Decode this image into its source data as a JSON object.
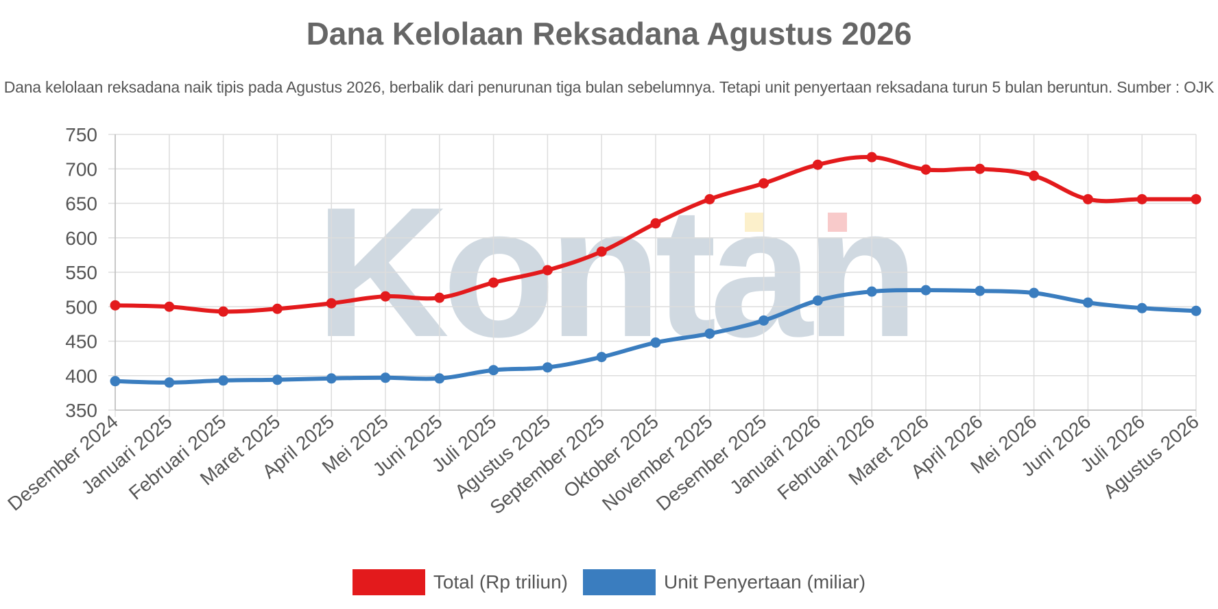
{
  "chart_data": {
    "type": "line",
    "title": "Dana Kelolaan Reksadana Agustus 2026",
    "subtitle": "Dana kelolaan reksadana naik tipis pada Agustus 2026, berbalik dari penurunan tiga bulan sebelumnya. Tetapi unit penyertaan reksadana turun 5 bulan beruntun. Sumber : OJK",
    "watermark": "Kontan",
    "categories": [
      "Desember 2024",
      "Januari 2025",
      "Februari 2025",
      "Maret 2025",
      "April 2025",
      "Mei 2025",
      "Juni 2025",
      "Juli 2025",
      "Agustus 2025",
      "September 2025",
      "Oktober 2025",
      "November 2025",
      "Desember 2025",
      "Januari 2026",
      "Februari 2026",
      "Maret 2026",
      "April 2026",
      "Mei 2026",
      "Juni 2026",
      "Juli 2026",
      "Agustus 2026"
    ],
    "series": [
      {
        "name": "Total (Rp triliun)",
        "color": "#e31a1c",
        "values": [
          502,
          500,
          493,
          497,
          505,
          515,
          513,
          535,
          553,
          580,
          621,
          656,
          679,
          706,
          717,
          699,
          700,
          690,
          656,
          656,
          656
        ]
      },
      {
        "name": "Unit Penyertaan (miliar)",
        "color": "#3a7dbf",
        "values": [
          392,
          390,
          393,
          394,
          396,
          397,
          396,
          408,
          412,
          427,
          448,
          461,
          480,
          509,
          522,
          524,
          523,
          520,
          506,
          498,
          494
        ]
      }
    ],
    "yticks": [
      350,
      400,
      450,
      500,
      550,
      600,
      650,
      700,
      750
    ],
    "ylim": [
      350,
      750
    ],
    "grid": true,
    "legend_position": "bottom"
  }
}
